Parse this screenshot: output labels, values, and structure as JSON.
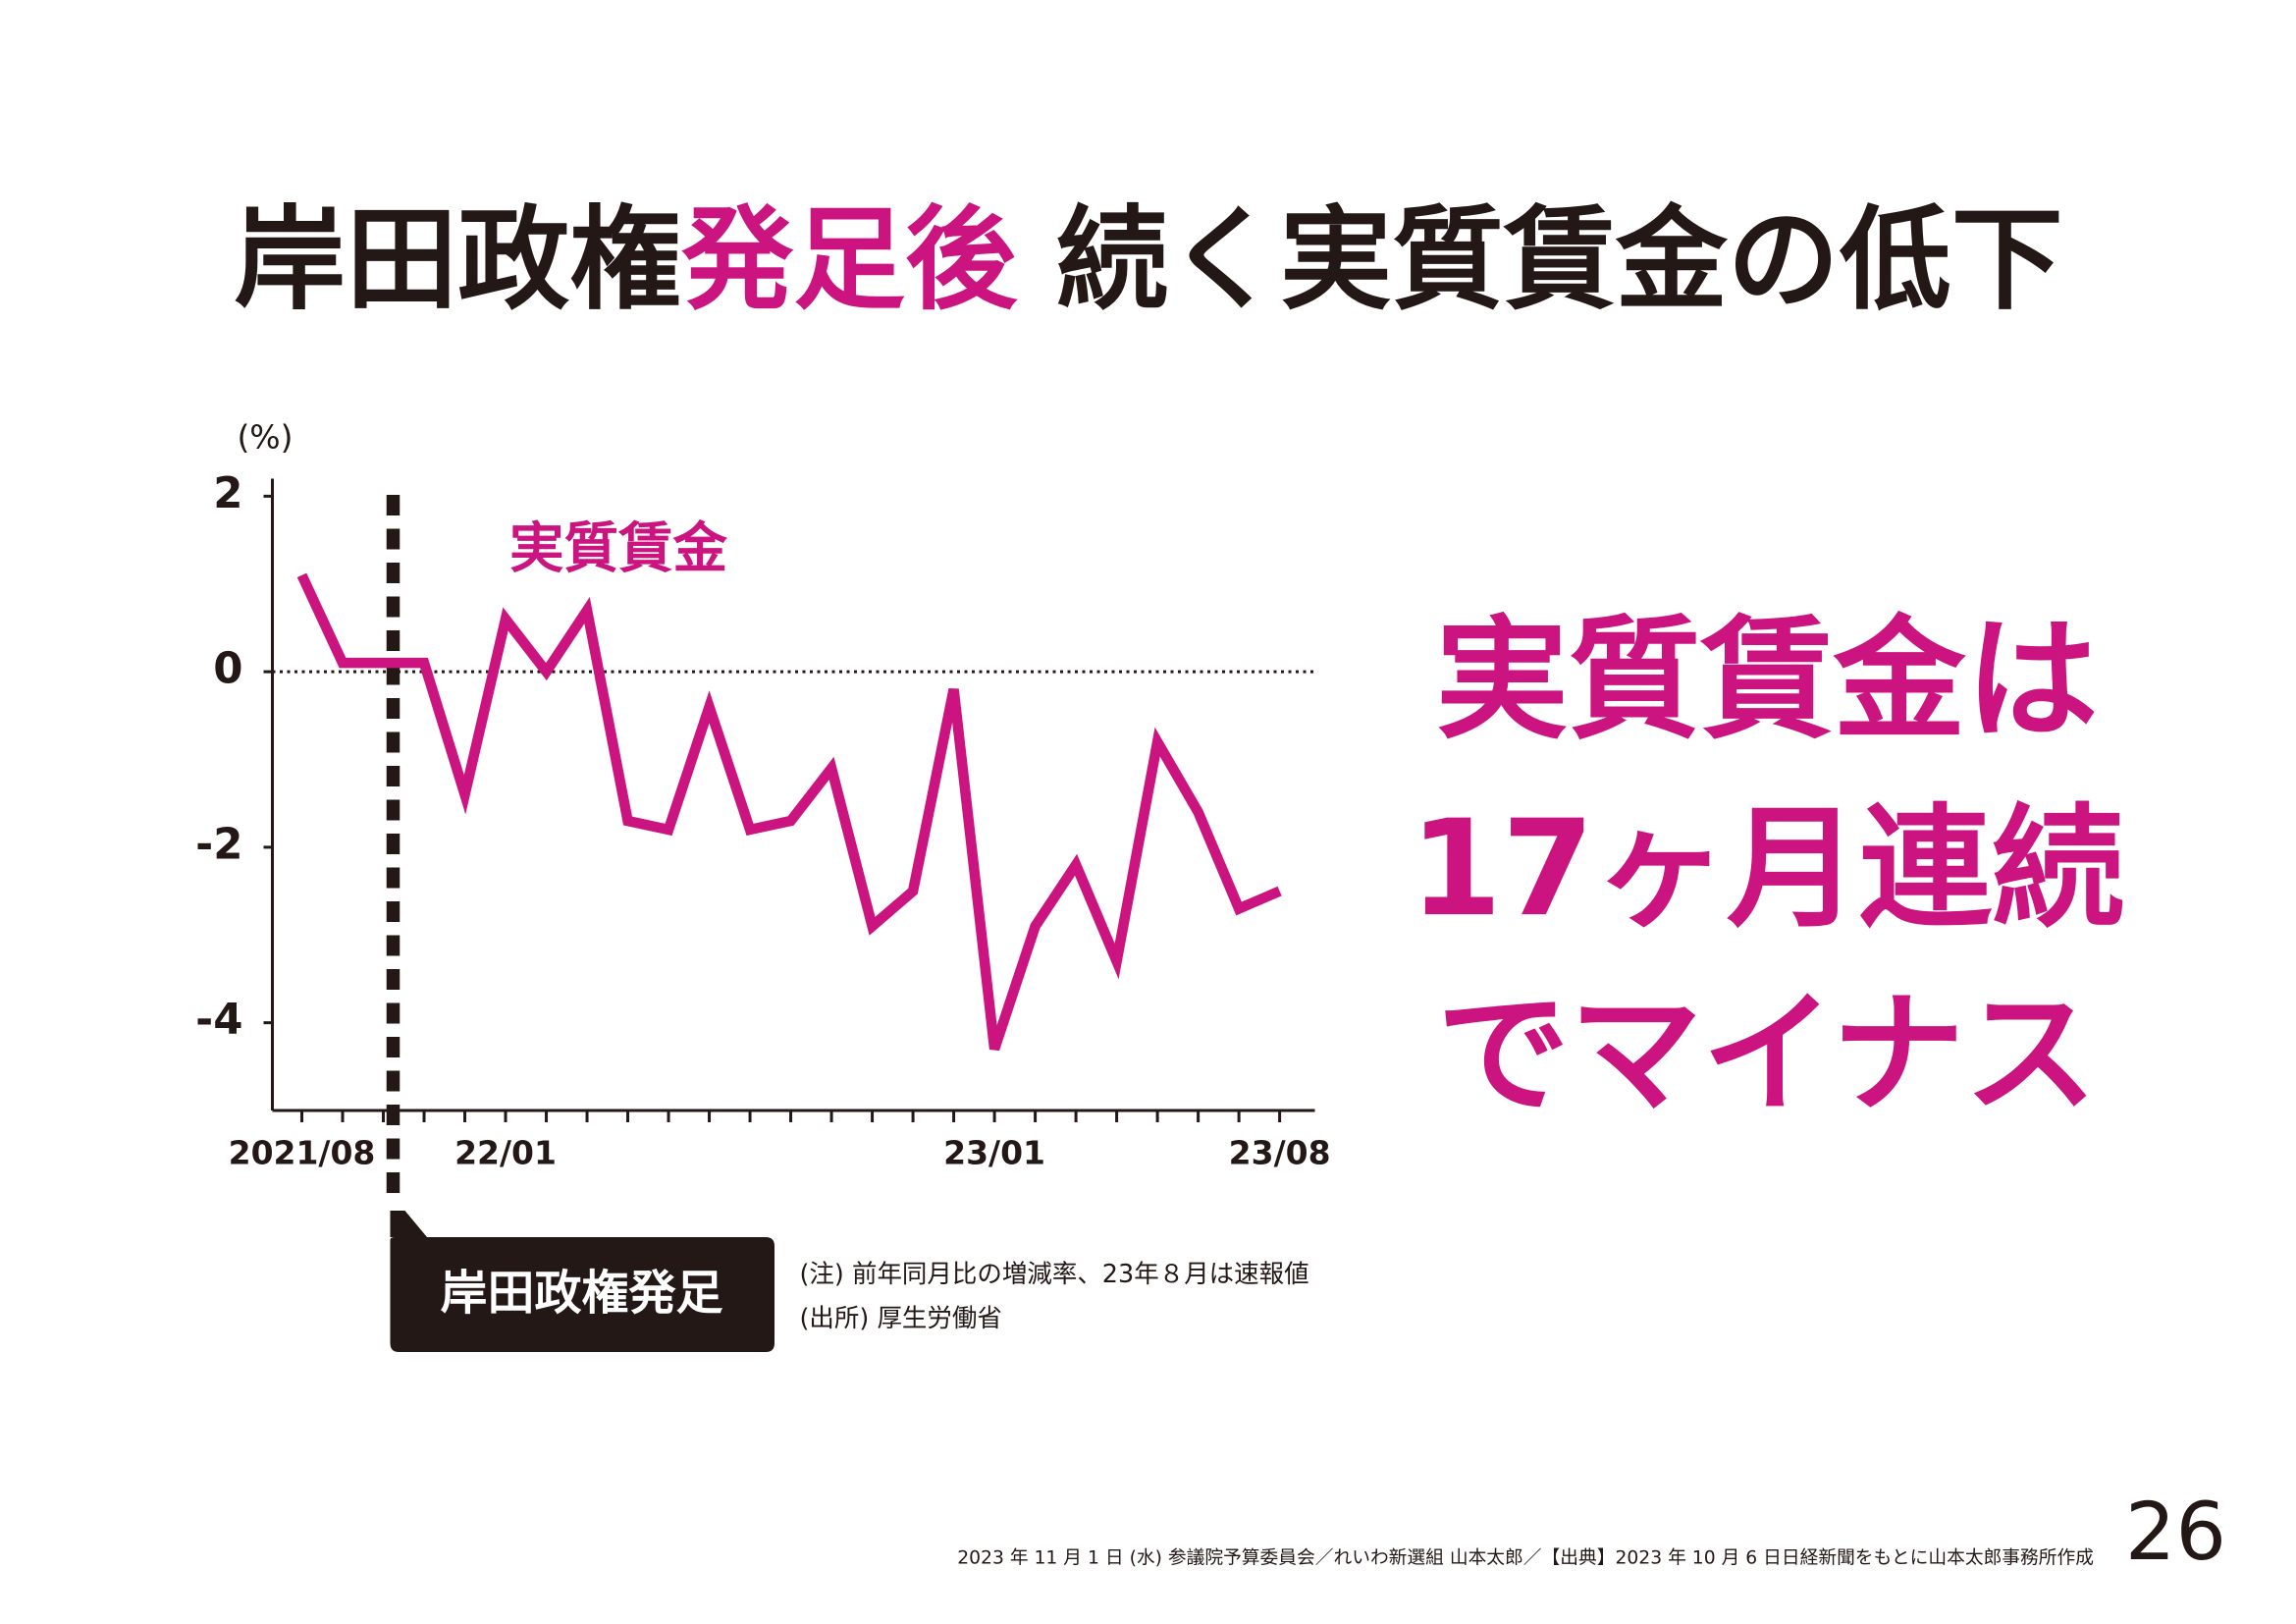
{
  "chart_data": {
    "type": "line",
    "title_segments": [
      {
        "text": "岸田政権",
        "color": "#231815"
      },
      {
        "text": "発足後",
        "color": "#cc1480"
      },
      {
        "text": " 続く実質賃金の低下",
        "color": "#231815"
      }
    ],
    "y_unit": "(%)",
    "categories": [
      "2021/08",
      null,
      null,
      null,
      null,
      "22/01",
      null,
      null,
      null,
      null,
      null,
      null,
      null,
      null,
      null,
      null,
      null,
      "23/01",
      null,
      null,
      null,
      null,
      null,
      null,
      "23/08"
    ],
    "series": [
      {
        "name": "実質賃金",
        "color": "#cc1480",
        "values": [
          1.1,
          0.1,
          0.1,
          0.1,
          -1.4,
          0.6,
          0.0,
          0.7,
          -1.7,
          -1.8,
          -0.4,
          -1.8,
          -1.7,
          -1.1,
          -2.9,
          -2.5,
          -0.2,
          -4.3,
          -2.9,
          -2.2,
          -3.3,
          -0.8,
          -1.6,
          -2.7,
          -2.5
        ]
      }
    ],
    "ylim": [
      -5,
      2.2
    ],
    "yticks": [
      -4,
      -2,
      0,
      2
    ],
    "annotation": "岸田政権発足",
    "notes": [
      "(注) 前年同月比の増減率、23年８月は速報値",
      "(出所) 厚生労働省"
    ],
    "headline": [
      "実質賃金は",
      "17ヶ月連続",
      "でマイナス"
    ],
    "footer": "2023 年 11 月 1 日 (水) 参議院予算委員会／れいわ新選組 山本太郎／【出典】2023 年 10 月 6 日日経新聞をもとに山本太郎事務所作成",
    "page_number": "26"
  }
}
